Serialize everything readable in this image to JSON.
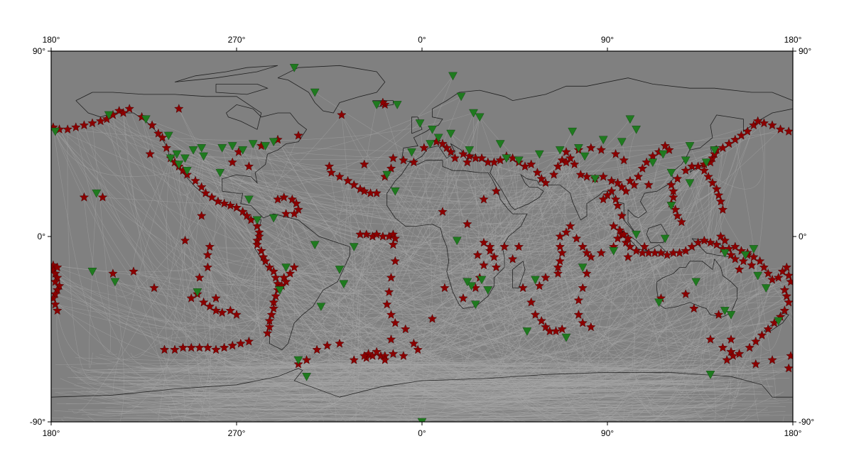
{
  "map": {
    "projection": "equirectangular",
    "background_color": "#808080",
    "ray_color": "#a8a8a8",
    "coast_color": "#000000",
    "event_color": "#8b0000",
    "station_color": "#1f7a1f",
    "lon_range": [
      -180,
      180
    ],
    "lat_range": [
      -90,
      90
    ]
  },
  "axes": {
    "top_labels": [
      "180°",
      "270°",
      "0°",
      "90°",
      "180°"
    ],
    "bottom_labels": [
      "180°",
      "270°",
      "0°",
      "90°",
      "180°"
    ],
    "left_labels": [
      "90°",
      "0°",
      "-90°"
    ],
    "right_labels": [
      "90°",
      "0°",
      "-90°"
    ]
  },
  "events_icon": "star-icon",
  "stations_icon": "inverted-triangle-icon",
  "events": [
    [
      -179,
      53
    ],
    [
      -176,
      52
    ],
    [
      -172,
      52
    ],
    [
      -168,
      53
    ],
    [
      -164,
      54
    ],
    [
      -160,
      55
    ],
    [
      -156,
      56
    ],
    [
      -153,
      57
    ],
    [
      -150,
      59
    ],
    [
      -147,
      61
    ],
    [
      -145,
      60
    ],
    [
      -142,
      62
    ],
    [
      -136,
      58
    ],
    [
      -131,
      54
    ],
    [
      -128,
      50
    ],
    [
      -126,
      48
    ],
    [
      -124,
      43
    ],
    [
      -122,
      38
    ],
    [
      -120,
      36
    ],
    [
      -118,
      34
    ],
    [
      -116,
      32
    ],
    [
      -114,
      30
    ],
    [
      -110,
      27
    ],
    [
      -107,
      24
    ],
    [
      -105,
      21
    ],
    [
      -102,
      19
    ],
    [
      -99,
      17
    ],
    [
      -96,
      16
    ],
    [
      -93,
      15
    ],
    [
      -90,
      14
    ],
    [
      -87,
      12
    ],
    [
      -85,
      10
    ],
    [
      -83,
      8
    ],
    [
      -80,
      5
    ],
    [
      -79,
      2
    ],
    [
      -79,
      0
    ],
    [
      -80,
      -2
    ],
    [
      -80,
      -4
    ],
    [
      -78,
      -7
    ],
    [
      -77,
      -10
    ],
    [
      -76,
      -12
    ],
    [
      -74,
      -15
    ],
    [
      -72,
      -17
    ],
    [
      -71,
      -20
    ],
    [
      -70,
      -23
    ],
    [
      -70,
      -26
    ],
    [
      -71,
      -29
    ],
    [
      -72,
      -32
    ],
    [
      -72,
      -35
    ],
    [
      -73,
      -38
    ],
    [
      -74,
      -41
    ],
    [
      -74,
      -44
    ],
    [
      -75,
      -47
    ],
    [
      -68,
      -24
    ],
    [
      -67,
      -20
    ],
    [
      -66,
      -22
    ],
    [
      -64,
      -18
    ],
    [
      -62,
      -15
    ],
    [
      -70,
      18
    ],
    [
      -67,
      19
    ],
    [
      -63,
      18
    ],
    [
      -61,
      16
    ],
    [
      -60,
      13
    ],
    [
      -62,
      11
    ],
    [
      -66,
      11
    ],
    [
      -179,
      -16
    ],
    [
      -178,
      -18
    ],
    [
      -177,
      -20
    ],
    [
      -178,
      -22
    ],
    [
      -176,
      -24
    ],
    [
      -177,
      -26
    ],
    [
      -178,
      -28
    ],
    [
      -179,
      -30
    ],
    [
      -178,
      -33
    ],
    [
      -177,
      -36
    ],
    [
      -179,
      -14
    ],
    [
      -177,
      -15
    ],
    [
      -125,
      -55
    ],
    [
      -120,
      -55
    ],
    [
      -116,
      -54
    ],
    [
      -112,
      -54
    ],
    [
      -108,
      -54
    ],
    [
      -104,
      -54
    ],
    [
      -100,
      -55
    ],
    [
      -96,
      -54
    ],
    [
      -92,
      -53
    ],
    [
      -88,
      -52
    ],
    [
      -84,
      -51
    ],
    [
      -112,
      -30
    ],
    [
      -109,
      -28
    ],
    [
      -106,
      -32
    ],
    [
      -103,
      -34
    ],
    [
      -100,
      -36
    ],
    [
      -97,
      -37
    ],
    [
      -93,
      -36
    ],
    [
      -90,
      -38
    ],
    [
      -108,
      -20
    ],
    [
      -104,
      -15
    ],
    [
      -104,
      -9
    ],
    [
      -103,
      -5
    ],
    [
      -39,
      59
    ],
    [
      -18,
      64
    ],
    [
      -19,
      65
    ],
    [
      -45,
      34
    ],
    [
      -44,
      31
    ],
    [
      -40,
      29
    ],
    [
      -36,
      27
    ],
    [
      -33,
      25
    ],
    [
      -30,
      23
    ],
    [
      -28,
      22
    ],
    [
      -25,
      21
    ],
    [
      -22,
      21
    ],
    [
      -28,
      35
    ],
    [
      -18,
      29
    ],
    [
      -15,
      33
    ],
    [
      -30,
      1
    ],
    [
      -27,
      1
    ],
    [
      -24,
      0
    ],
    [
      -22,
      1
    ],
    [
      -19,
      0
    ],
    [
      -16,
      0
    ],
    [
      -14,
      1
    ],
    [
      -13,
      -1
    ],
    [
      -14,
      -4
    ],
    [
      -13,
      -12
    ],
    [
      -15,
      -20
    ],
    [
      -16,
      -27
    ],
    [
      -17,
      -33
    ],
    [
      -15,
      -38
    ],
    [
      -13,
      -42
    ],
    [
      -20,
      -58
    ],
    [
      -24,
      -58
    ],
    [
      -27,
      -59
    ],
    [
      -26,
      -57
    ],
    [
      -22,
      -56
    ],
    [
      -18,
      -58
    ],
    [
      -14,
      -57
    ],
    [
      -9,
      -58
    ],
    [
      -2,
      -55
    ],
    [
      -18,
      -60
    ],
    [
      -28,
      -58
    ],
    [
      -33,
      -60
    ],
    [
      -40,
      -52
    ],
    [
      -46,
      -53
    ],
    [
      -51,
      -55
    ],
    [
      -56,
      -60
    ],
    [
      -60,
      -62
    ],
    [
      20,
      40
    ],
    [
      23,
      39
    ],
    [
      26,
      38
    ],
    [
      29,
      38
    ],
    [
      32,
      36
    ],
    [
      35,
      36
    ],
    [
      38,
      37
    ],
    [
      41,
      39
    ],
    [
      44,
      38
    ],
    [
      47,
      36
    ],
    [
      50,
      34
    ],
    [
      53,
      35
    ],
    [
      56,
      31
    ],
    [
      58,
      28
    ],
    [
      60,
      26
    ],
    [
      64,
      30
    ],
    [
      66,
      34
    ],
    [
      68,
      37
    ],
    [
      70,
      36
    ],
    [
      72,
      38
    ],
    [
      74,
      35
    ],
    [
      77,
      30
    ],
    [
      80,
      29
    ],
    [
      84,
      28
    ],
    [
      88,
      29
    ],
    [
      92,
      27
    ],
    [
      95,
      26
    ],
    [
      97,
      24
    ],
    [
      99,
      22
    ],
    [
      101,
      27
    ],
    [
      103,
      25
    ],
    [
      105,
      29
    ],
    [
      107,
      33
    ],
    [
      109,
      36
    ],
    [
      112,
      39
    ],
    [
      115,
      41
    ],
    [
      118,
      44
    ],
    [
      120,
      42
    ],
    [
      98,
      37
    ],
    [
      94,
      40
    ],
    [
      87,
      42
    ],
    [
      82,
      43
    ],
    [
      76,
      42
    ],
    [
      70,
      41
    ],
    [
      110,
      25
    ],
    [
      22,
      36
    ],
    [
      14,
      41
    ],
    [
      16,
      38
    ],
    [
      12,
      43
    ],
    [
      10,
      45
    ],
    [
      7,
      46
    ],
    [
      1,
      43
    ],
    [
      -4,
      36
    ],
    [
      -9,
      37
    ],
    [
      -14,
      38
    ],
    [
      30,
      -3
    ],
    [
      33,
      -7
    ],
    [
      35,
      -10
    ],
    [
      36,
      -15
    ],
    [
      30,
      -14
    ],
    [
      27,
      -9
    ],
    [
      40,
      -5
    ],
    [
      44,
      -11
    ],
    [
      49,
      -25
    ],
    [
      53,
      -32
    ],
    [
      55,
      -38
    ],
    [
      58,
      -41
    ],
    [
      60,
      -44
    ],
    [
      62,
      -46
    ],
    [
      65,
      -46
    ],
    [
      68,
      -45
    ],
    [
      66,
      -18
    ],
    [
      66,
      -15
    ],
    [
      67,
      -12
    ],
    [
      68,
      -8
    ],
    [
      67,
      -5
    ],
    [
      67,
      0
    ],
    [
      70,
      2
    ],
    [
      72,
      5
    ],
    [
      75,
      -1
    ],
    [
      78,
      -5
    ],
    [
      80,
      -8
    ],
    [
      82,
      -10
    ],
    [
      80,
      -18
    ],
    [
      78,
      -25
    ],
    [
      76,
      -31
    ],
    [
      76,
      -38
    ],
    [
      78,
      -42
    ],
    [
      82,
      -44
    ],
    [
      87,
      -8
    ],
    [
      93,
      -5
    ],
    [
      95,
      -1
    ],
    [
      97,
      1
    ],
    [
      99,
      -3
    ],
    [
      101,
      -5
    ],
    [
      104,
      -7
    ],
    [
      107,
      -8
    ],
    [
      110,
      -8
    ],
    [
      113,
      -8
    ],
    [
      116,
      -8
    ],
    [
      119,
      -9
    ],
    [
      122,
      -8
    ],
    [
      125,
      -8
    ],
    [
      128,
      -7
    ],
    [
      131,
      -5
    ],
    [
      134,
      -3
    ],
    [
      137,
      -2
    ],
    [
      140,
      -3
    ],
    [
      143,
      -4
    ],
    [
      146,
      -6
    ],
    [
      149,
      -6
    ],
    [
      152,
      -5
    ],
    [
      155,
      -7
    ],
    [
      158,
      -9
    ],
    [
      161,
      -10
    ],
    [
      164,
      -12
    ],
    [
      166,
      -15
    ],
    [
      168,
      -18
    ],
    [
      170,
      -21
    ],
    [
      173,
      -20
    ],
    [
      175,
      -17
    ],
    [
      177,
      -15
    ],
    [
      178,
      -19
    ],
    [
      179,
      -22
    ],
    [
      176,
      -26
    ],
    [
      177,
      -29
    ],
    [
      178,
      -32
    ],
    [
      176,
      -36
    ],
    [
      174,
      -39
    ],
    [
      171,
      -42
    ],
    [
      168,
      -45
    ],
    [
      165,
      -48
    ],
    [
      162,
      -51
    ],
    [
      159,
      -54
    ],
    [
      154,
      -57
    ],
    [
      150,
      -56
    ],
    [
      146,
      -54
    ],
    [
      140,
      -50
    ],
    [
      150,
      -50
    ],
    [
      126,
      7
    ],
    [
      124,
      10
    ],
    [
      123,
      13
    ],
    [
      121,
      16
    ],
    [
      122,
      19
    ],
    [
      122,
      22
    ],
    [
      121,
      25
    ],
    [
      124,
      28
    ],
    [
      128,
      32
    ],
    [
      131,
      34
    ],
    [
      134,
      34
    ],
    [
      137,
      35
    ],
    [
      140,
      36
    ],
    [
      141,
      38
    ],
    [
      142,
      40
    ],
    [
      143,
      42
    ],
    [
      146,
      43
    ],
    [
      149,
      45
    ],
    [
      152,
      47
    ],
    [
      155,
      49
    ],
    [
      158,
      51
    ],
    [
      161,
      54
    ],
    [
      163,
      56
    ],
    [
      166,
      55
    ],
    [
      170,
      54
    ],
    [
      174,
      52
    ],
    [
      178,
      51
    ],
    [
      93,
      5
    ],
    [
      96,
      3
    ],
    [
      98,
      1
    ],
    [
      100,
      -1
    ],
    [
      97,
      10
    ],
    [
      95,
      15
    ],
    [
      94,
      18
    ],
    [
      92,
      22
    ],
    [
      90,
      20
    ],
    [
      88,
      18
    ],
    [
      146,
      13
    ],
    [
      145,
      17
    ],
    [
      144,
      20
    ],
    [
      143,
      23
    ],
    [
      141,
      26
    ],
    [
      139,
      29
    ],
    [
      137,
      32
    ],
    [
      145,
      0
    ],
    [
      147,
      -2
    ],
    [
      150,
      -9
    ],
    [
      152,
      -11
    ],
    [
      154,
      -16
    ],
    [
      156,
      -12
    ],
    [
      158,
      -8
    ],
    [
      160,
      -14
    ],
    [
      151,
      -58
    ],
    [
      148,
      -60
    ],
    [
      162,
      -62
    ],
    [
      170,
      -60
    ],
    [
      178,
      -64
    ],
    [
      179,
      -58
    ],
    [
      -164,
      19
    ],
    [
      -155,
      19
    ],
    [
      -150,
      -18
    ],
    [
      -140,
      -17
    ],
    [
      -130,
      -25
    ],
    [
      -115,
      -2
    ],
    [
      -132,
      40
    ],
    [
      -118,
      62
    ],
    [
      -107,
      10
    ],
    [
      -100,
      -30
    ],
    [
      -84,
      34
    ],
    [
      -92,
      36
    ],
    [
      -89,
      41
    ],
    [
      -78,
      44
    ],
    [
      -70,
      47
    ],
    [
      -60,
      49
    ],
    [
      10,
      12
    ],
    [
      22,
      6
    ],
    [
      30,
      18
    ],
    [
      36,
      22
    ],
    [
      28,
      -20
    ],
    [
      26,
      -25
    ],
    [
      20,
      -30
    ],
    [
      11,
      -25
    ],
    [
      5,
      -40
    ],
    [
      -8,
      -45
    ],
    [
      -4,
      -52
    ],
    [
      -15,
      -50
    ],
    [
      33,
      -5
    ],
    [
      47,
      -5
    ],
    [
      57,
      -24
    ],
    [
      60,
      -20
    ],
    [
      100,
      -10
    ],
    [
      108,
      -5
    ],
    [
      128,
      -28
    ],
    [
      144,
      -38
    ],
    [
      132,
      -35
    ],
    [
      116,
      -30
    ]
  ],
  "stations": [
    [
      -178,
      51
    ],
    [
      -152,
      59
    ],
    [
      -134,
      57
    ],
    [
      -119,
      40
    ],
    [
      -122,
      38
    ],
    [
      -118,
      35
    ],
    [
      -115,
      38
    ],
    [
      -111,
      42
    ],
    [
      -106,
      39
    ],
    [
      -98,
      31
    ],
    [
      -92,
      44
    ],
    [
      -87,
      42
    ],
    [
      -82,
      45
    ],
    [
      -76,
      44
    ],
    [
      -72,
      46
    ],
    [
      -123,
      49
    ],
    [
      -114,
      32
    ],
    [
      -107,
      43
    ],
    [
      -97,
      43
    ],
    [
      -84,
      18
    ],
    [
      -80,
      8
    ],
    [
      -72,
      9
    ],
    [
      -66,
      -15
    ],
    [
      -69,
      -26
    ],
    [
      -60,
      -60
    ],
    [
      -52,
      -4
    ],
    [
      -40,
      -16
    ],
    [
      -49,
      -34
    ],
    [
      -33,
      -5
    ],
    [
      -38,
      -23
    ],
    [
      -56,
      -68
    ],
    [
      -158,
      21
    ],
    [
      -160,
      -17
    ],
    [
      -149,
      -22
    ],
    [
      -109,
      -27
    ],
    [
      -62,
      82
    ],
    [
      -52,
      70
    ],
    [
      -22,
      64
    ],
    [
      -17,
      30
    ],
    [
      -12,
      64
    ],
    [
      -13,
      22
    ],
    [
      -5,
      41
    ],
    [
      4,
      45
    ],
    [
      -1,
      55
    ],
    [
      5,
      52
    ],
    [
      8,
      48
    ],
    [
      14,
      50
    ],
    [
      15,
      78
    ],
    [
      25,
      60
    ],
    [
      28,
      58
    ],
    [
      19,
      68
    ],
    [
      23,
      42
    ],
    [
      38,
      45
    ],
    [
      41,
      38
    ],
    [
      47,
      37
    ],
    [
      57,
      40
    ],
    [
      67,
      42
    ],
    [
      73,
      51
    ],
    [
      76,
      43
    ],
    [
      79,
      39
    ],
    [
      84,
      28
    ],
    [
      88,
      47
    ],
    [
      101,
      57
    ],
    [
      104,
      52
    ],
    [
      97,
      46
    ],
    [
      112,
      36
    ],
    [
      117,
      40
    ],
    [
      121,
      31
    ],
    [
      128,
      37
    ],
    [
      138,
      36
    ],
    [
      142,
      42
    ],
    [
      130,
      26
    ],
    [
      130,
      44
    ],
    [
      17,
      -2
    ],
    [
      24,
      -24
    ],
    [
      26,
      -33
    ],
    [
      22,
      -22
    ],
    [
      29,
      -21
    ],
    [
      32,
      -26
    ],
    [
      55,
      -21
    ],
    [
      51,
      -46
    ],
    [
      70,
      -49
    ],
    [
      78,
      -15
    ],
    [
      93,
      -7
    ],
    [
      104,
      1
    ],
    [
      118,
      -1
    ],
    [
      121,
      15
    ],
    [
      147,
      -8
    ],
    [
      157,
      -9
    ],
    [
      161,
      -6
    ],
    [
      115,
      -32
    ],
    [
      133,
      -22
    ],
    [
      147,
      -36
    ],
    [
      150,
      -38
    ],
    [
      163,
      -19
    ],
    [
      173,
      -41
    ],
    [
      167,
      -25
    ],
    [
      140,
      -67
    ],
    [
      0,
      -90
    ]
  ],
  "rays_seed": 7,
  "rays_count": 650
}
